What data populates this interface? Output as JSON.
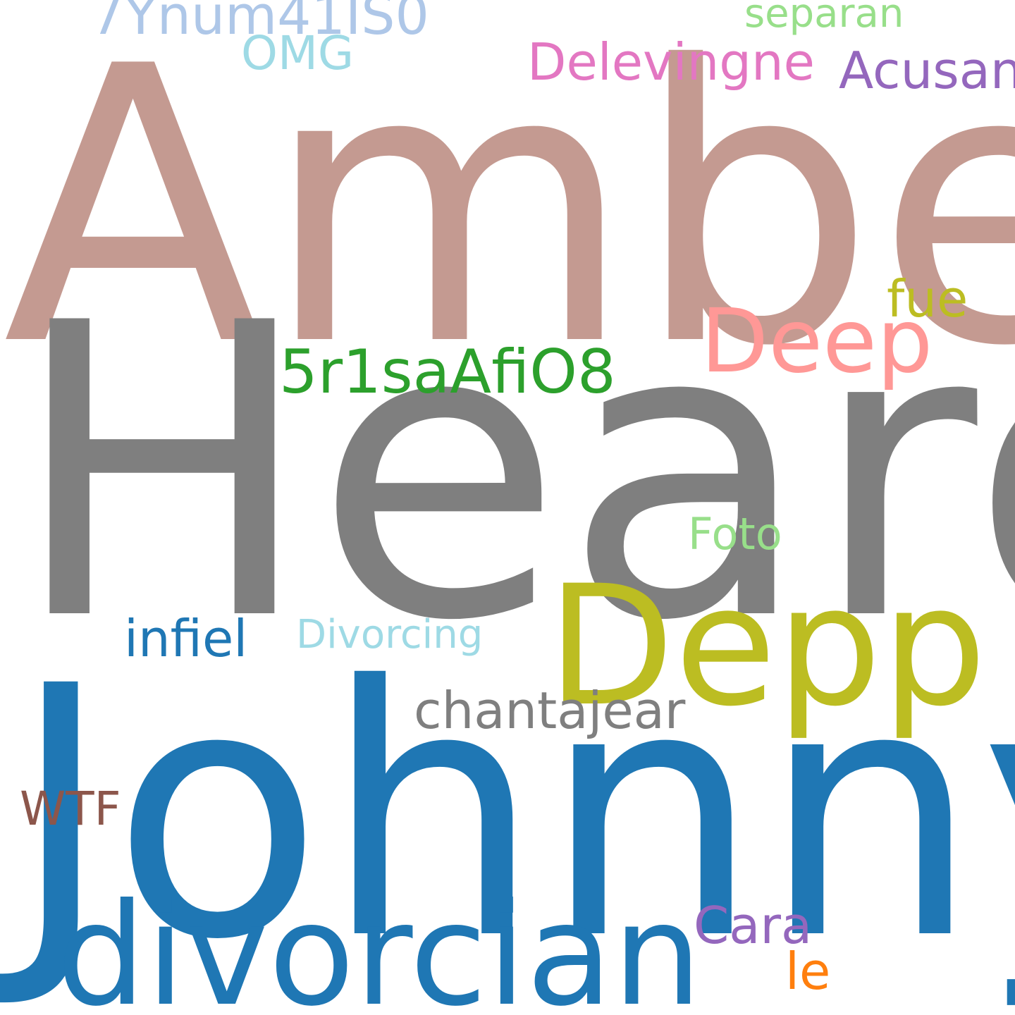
{
  "words": {
    "amber": "Amber",
    "heard": "Heard",
    "johnny": "Johnny",
    "depp": "Depp",
    "divorcian": "divorcian",
    "deep": "Deep",
    "code_5r1sa": "5r1saAfiO8",
    "chantajear": "chantajear",
    "delevingne": "Delevingne",
    "code_7ynum": "7Ynum41IS0",
    "acusan": "Acusan",
    "infiel": "infiel",
    "cara": "Cara",
    "fue": "fue",
    "omg": "OMG",
    "foto": "Foto",
    "wtf": "WTF",
    "divorcing": "Divorcing",
    "separan": "separan",
    "le": "le"
  },
  "colors": {
    "amber": "#c49a91",
    "heard": "#7f7f7f",
    "johnny": "#1f77b4",
    "depp": "#bcbd22",
    "divorcian": "#1f77b4",
    "deep": "#ff9896",
    "code_5r1sa": "#2ca02c",
    "chantajear": "#7f7f7f",
    "delevingne": "#e377c2",
    "code_7ynum": "#aec7e8",
    "acusan": "#9467bd",
    "infiel": "#1f77b4",
    "cara": "#9467bd",
    "fue": "#bcbd22",
    "omg": "#9edae5",
    "foto": "#98df8a",
    "wtf": "#8c564b",
    "divorcing": "#9edae5",
    "separan": "#98df8a",
    "le": "#ff7f0e"
  }
}
